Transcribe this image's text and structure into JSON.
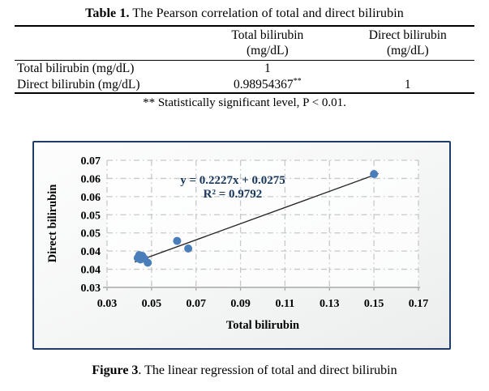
{
  "page": {
    "table_title": {
      "bold": "Table 1.",
      "rest": " The Pearson correlation of total and direct bilirubin"
    },
    "figure_caption": {
      "bold": "Figure 3",
      "rest": ". The linear regression of total and direct bilirubin"
    }
  },
  "table": {
    "columns": {
      "col1": {
        "line1": "Total bilirubin",
        "line2": "(mg/dL)"
      },
      "col2": {
        "line1": "Direct bilirubin",
        "line2": "(mg/dL)"
      }
    },
    "rows": [
      {
        "label": "Total bilirubin (mg/dL)",
        "total": "1",
        "total_sup": "",
        "direct": ""
      },
      {
        "label": "Direct bilirubin (mg/dL)",
        "total": "0.98954367",
        "total_sup": "**",
        "direct": "1"
      }
    ],
    "footnote": "** Statistically significant level, P < 0.01."
  },
  "chart_data": {
    "type": "scatter",
    "title": "",
    "xlabel": "Total bilirubin",
    "ylabel": "Direct bilirubin",
    "xlim": [
      0.03,
      0.17
    ],
    "ylim": [
      0.03,
      0.065
    ],
    "grid": true,
    "legend": "none",
    "x_ticks": [
      {
        "value": 0.03,
        "label": "0.03"
      },
      {
        "value": 0.05,
        "label": "0.05"
      },
      {
        "value": 0.07,
        "label": "0.07"
      },
      {
        "value": 0.09,
        "label": "0.09"
      },
      {
        "value": 0.11,
        "label": "0.11"
      },
      {
        "value": 0.13,
        "label": "0.13"
      },
      {
        "value": 0.15,
        "label": "0.15"
      },
      {
        "value": 0.17,
        "label": "0.17"
      }
    ],
    "y_ticks": [
      {
        "value": 0.03,
        "label": "0.03"
      },
      {
        "value": 0.035,
        "label": "0.04"
      },
      {
        "value": 0.04,
        "label": "0.04"
      },
      {
        "value": 0.045,
        "label": "0.05"
      },
      {
        "value": 0.05,
        "label": "0.05"
      },
      {
        "value": 0.055,
        "label": "0.06"
      },
      {
        "value": 0.06,
        "label": "0.06"
      },
      {
        "value": 0.065,
        "label": "0.07"
      }
    ],
    "points": [
      [
        0.0438,
        0.0381
      ],
      [
        0.0445,
        0.0389
      ],
      [
        0.045,
        0.0377
      ],
      [
        0.0458,
        0.0387
      ],
      [
        0.0468,
        0.0379
      ],
      [
        0.0483,
        0.0368
      ],
      [
        0.0615,
        0.0428
      ],
      [
        0.0665,
        0.0407
      ],
      [
        0.15,
        0.0612
      ]
    ],
    "trendline": {
      "slope": 0.2227,
      "intercept": 0.0275,
      "x_start": 0.0425,
      "x_end": 0.152
    },
    "annotation": {
      "equation": "y = 0.2227x + 0.0275",
      "r_squared": "R² = 0.9792"
    },
    "colors": {
      "marker": "#4A7EBB",
      "trendline": "#262626",
      "gridline": "#C8C8C8",
      "axis": "#A8A8A8",
      "chart_border": "#1F3D68",
      "annotation_text": "#17375D",
      "tick_text": "#000000"
    }
  }
}
